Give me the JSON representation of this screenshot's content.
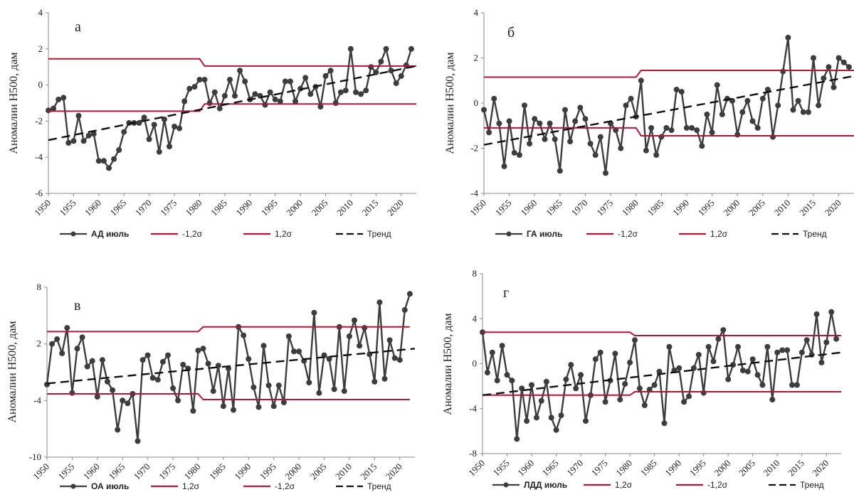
{
  "colors": {
    "data_series": "#3d3d3d",
    "sigma_lines": "#b0183a",
    "trend": "#111111",
    "axis": "#8a8a8a"
  },
  "chart_data": [
    {
      "type": "line",
      "panel_label": "а",
      "ylabel": "Аномалии H500, дам",
      "ylim": [
        -6,
        4
      ],
      "yticks": [
        -6,
        -4,
        -2,
        0,
        2,
        4
      ],
      "xlim": [
        1950,
        2023
      ],
      "xticks": [
        1950,
        1955,
        1960,
        1965,
        1970,
        1975,
        1980,
        1985,
        1990,
        1995,
        2000,
        2005,
        2010,
        2015,
        2020
      ],
      "series": [
        {
          "name": "АД июль",
          "values": [
            -1.4,
            -1.3,
            -0.8,
            -0.7,
            -3.2,
            -3.1,
            -1.7,
            -3.1,
            -2.8,
            -2.7,
            -4.2,
            -4.2,
            -4.6,
            -4.1,
            -3.6,
            -2.6,
            -2.1,
            -2.1,
            -2.1,
            -1.8,
            -3.0,
            -2.2,
            -3.7,
            -1.9,
            -3.4,
            -2.3,
            -2.4,
            -0.9,
            -0.2,
            -0.1,
            0.3,
            0.3,
            -1.0,
            -0.4,
            -1.3,
            -0.6,
            0.3,
            -0.6,
            0.8,
            0.2,
            -0.8,
            -0.5,
            -0.6,
            -1.1,
            -0.4,
            -0.8,
            -0.9,
            0.2,
            0.2,
            -0.9,
            -0.2,
            0.4,
            -0.5,
            -0.1,
            -1.2,
            0.5,
            0.8,
            -1.0,
            -0.4,
            -0.3,
            2.0,
            -0.4,
            -0.5,
            -0.3,
            1.0,
            0.7,
            1.3,
            2.0,
            0.8,
            0.1,
            0.5,
            1.1,
            2.0
          ]
        },
        {
          "name": "-1,2σ",
          "x": [
            1950,
            1980,
            1981,
            2023
          ],
          "values": [
            -1.45,
            -1.45,
            -1.05,
            -1.05
          ]
        },
        {
          "name": "1,2σ",
          "x": [
            1950,
            1980,
            1981,
            2023
          ],
          "values": [
            1.45,
            1.45,
            1.05,
            1.05
          ]
        },
        {
          "name": "Тренд",
          "x": [
            1950,
            2023
          ],
          "values": [
            -3.05,
            1.05
          ]
        }
      ],
      "legend": [
        "АД июль",
        "-1,2σ",
        "1,2σ",
        "Тренд"
      ]
    },
    {
      "type": "line",
      "panel_label": "б",
      "ylabel": "Аномалии H500, дам",
      "ylim": [
        -4,
        4
      ],
      "yticks": [
        -4,
        -2,
        0,
        2,
        4
      ],
      "xlim": [
        1950,
        2023
      ],
      "xticks": [
        1950,
        1955,
        1960,
        1965,
        1970,
        1975,
        1980,
        1985,
        1990,
        1995,
        2000,
        2005,
        2010,
        2015,
        2020
      ],
      "series": [
        {
          "name": "ГА июль",
          "values": [
            -0.3,
            -1.3,
            0.2,
            -0.9,
            -2.8,
            -0.8,
            -2.2,
            -2.3,
            -0.1,
            -1.8,
            -0.7,
            -0.9,
            -1.6,
            -0.9,
            -1.6,
            -3.0,
            -0.3,
            -1.7,
            -0.8,
            -0.2,
            -0.7,
            -1.8,
            -2.3,
            -1.5,
            -3.1,
            -0.9,
            -1.2,
            -2.0,
            -0.1,
            0.2,
            -0.6,
            1.0,
            -2.1,
            -1.1,
            -2.3,
            -1.5,
            -1.1,
            -1.2,
            0.6,
            0.5,
            -1.1,
            -1.1,
            -1.2,
            -1.9,
            -0.5,
            -1.3,
            0.8,
            -0.5,
            0.2,
            0.1,
            -1.4,
            -0.4,
            0.1,
            -0.8,
            -1.1,
            0.2,
            0.6,
            -1.5,
            -0.1,
            1.4,
            2.9,
            -0.3,
            0.1,
            -0.4,
            -0.4,
            2.0,
            -0.1,
            1.1,
            1.6,
            0.7,
            2.0,
            1.8,
            1.6
          ]
        },
        {
          "name": "-1,2σ",
          "x": [
            1950,
            1980,
            1981,
            2023
          ],
          "values": [
            -1.1,
            -1.1,
            -1.45,
            -1.45
          ]
        },
        {
          "name": "1,2σ",
          "x": [
            1950,
            1980,
            1981,
            2023
          ],
          "values": [
            1.15,
            1.15,
            1.45,
            1.45
          ]
        },
        {
          "name": "Тренд",
          "x": [
            1950,
            2023
          ],
          "values": [
            -1.85,
            1.2
          ]
        }
      ],
      "legend": [
        "ГА июль",
        "-1,2σ",
        "1,2σ",
        "Тренд"
      ]
    },
    {
      "type": "line",
      "panel_label": "в",
      "ylabel": "Аномалии H500, дам",
      "ylim": [
        -10,
        8
      ],
      "yticks": [
        -10,
        -4,
        2,
        8
      ],
      "xlim": [
        1950,
        2023
      ],
      "xticks": [
        1950,
        1955,
        1960,
        1965,
        1970,
        1975,
        1980,
        1985,
        1990,
        1995,
        2000,
        2005,
        2010,
        2015,
        2020
      ],
      "series": [
        {
          "name": "ОА июль",
          "values": [
            -2.3,
            2.0,
            2.5,
            1.0,
            3.7,
            -3.2,
            1.5,
            2.7,
            -0.4,
            0.2,
            -3.6,
            0.3,
            -2.0,
            -2.9,
            -7.1,
            -4.0,
            -4.3,
            -3.3,
            -8.3,
            0.3,
            0.8,
            -1.6,
            -1.8,
            0.1,
            0.8,
            -2.7,
            -4.0,
            -0.2,
            -0.6,
            -5.1,
            1.3,
            1.5,
            -0.1,
            -3.0,
            -0.3,
            -4.6,
            -0.6,
            -5.0,
            3.8,
            2.9,
            0.4,
            -2.6,
            -4.7,
            1.8,
            -2.4,
            -4.6,
            -2.4,
            -4.2,
            2.8,
            1.2,
            1.2,
            0.2,
            -2.1,
            5.3,
            -3.2,
            0.8,
            0.4,
            -2.8,
            3.8,
            -3.0,
            2.8,
            4.5,
            1.8,
            3.7,
            0.9,
            -2.0,
            6.4,
            -1.7,
            2.4,
            0.5,
            0.3,
            5.6,
            7.3
          ]
        },
        {
          "name": "1,2σ",
          "x": [
            1950,
            1980,
            1981,
            2022
          ],
          "values": [
            3.3,
            3.3,
            3.8,
            3.8
          ]
        },
        {
          "name": "-1,2σ",
          "x": [
            1950,
            1980,
            1981,
            2022
          ],
          "values": [
            -3.3,
            -3.3,
            -3.9,
            -3.9
          ]
        },
        {
          "name": "Тренд",
          "x": [
            1950,
            2023
          ],
          "values": [
            -2.2,
            1.5
          ]
        }
      ],
      "legend": [
        "ОА июль",
        "1,2σ",
        "-1,2σ",
        "Тренд"
      ]
    },
    {
      "type": "line",
      "panel_label": "г",
      "ylabel": "Аномалии H500, дам",
      "ylim": [
        -8,
        8
      ],
      "yticks": [
        -8,
        -4,
        0,
        4,
        8
      ],
      "xlim": [
        1950,
        2023
      ],
      "xticks": [
        1950,
        1955,
        1960,
        1965,
        1970,
        1975,
        1980,
        1985,
        1990,
        1995,
        2000,
        2005,
        2010,
        2015,
        2020
      ],
      "series": [
        {
          "name": "ЛДД июль",
          "values": [
            2.8,
            -0.8,
            1.0,
            -1.5,
            1.6,
            -1.0,
            -1.5,
            -6.7,
            -2.2,
            -5.1,
            -1.9,
            -4.8,
            -3.3,
            -1.6,
            -4.8,
            -5.9,
            -4.6,
            -1.4,
            -0.1,
            -2.2,
            -1.0,
            -5.1,
            -2.8,
            0.4,
            1.0,
            -3.4,
            -1.5,
            0.9,
            -3.2,
            -1.8,
            0.1,
            2.1,
            -2.2,
            -3.7,
            -2.3,
            -1.9,
            -0.7,
            -5.3,
            1.5,
            -0.6,
            -0.4,
            -3.4,
            -2.9,
            -0.4,
            0.8,
            -2.6,
            1.5,
            0.2,
            2.2,
            3.0,
            -1.4,
            -0.1,
            1.5,
            -0.6,
            -0.7,
            0.4,
            -1.0,
            -1.9,
            1.5,
            -3.2,
            1.0,
            1.2,
            1.2,
            -1.9,
            -1.9,
            1.0,
            2.1,
            0.8,
            4.4,
            0.1,
            1.9,
            4.6,
            2.2
          ]
        },
        {
          "name": "1,2σ",
          "x": [
            1950,
            1980,
            1981,
            2023
          ],
          "values": [
            2.8,
            2.8,
            2.5,
            2.5
          ]
        },
        {
          "name": "-1,2σ",
          "x": [
            1950,
            1980,
            1981,
            2023
          ],
          "values": [
            -2.8,
            -2.8,
            -2.5,
            -2.5
          ]
        },
        {
          "name": "Тренд",
          "x": [
            1950,
            2023
          ],
          "values": [
            -2.8,
            1.0
          ]
        }
      ],
      "legend": [
        "ЛДД июль",
        "1,2σ",
        "-1,2σ",
        "Тренд"
      ]
    }
  ]
}
